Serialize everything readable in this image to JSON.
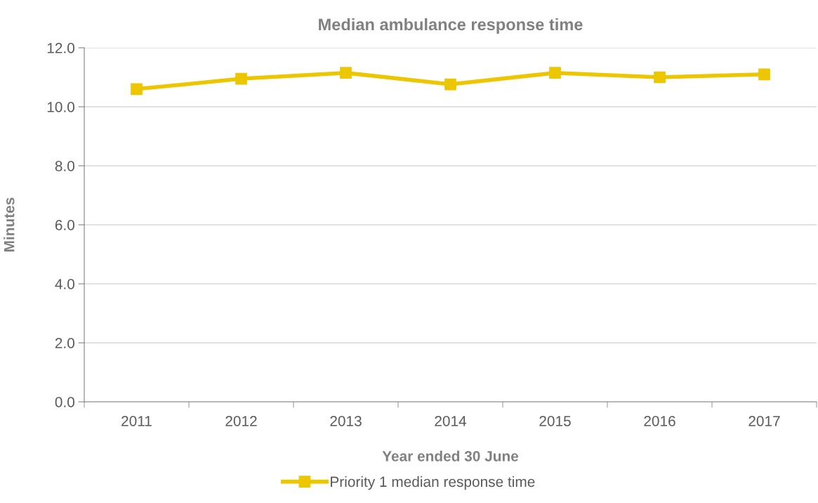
{
  "chart_data": {
    "type": "line",
    "title": "Median ambulance response time",
    "xlabel": "Year ended 30 June",
    "ylabel": "Minutes",
    "categories": [
      "2011",
      "2012",
      "2013",
      "2014",
      "2015",
      "2016",
      "2017"
    ],
    "series": [
      {
        "name": "Priority 1 median response time",
        "color": "#ecc600",
        "values": [
          10.6,
          10.95,
          11.15,
          10.76,
          11.15,
          11.0,
          11.1
        ]
      }
    ],
    "ylim": [
      0,
      12
    ],
    "yticks": [
      {
        "value": 0,
        "label": "0.0"
      },
      {
        "value": 2,
        "label": "2.0"
      },
      {
        "value": 4,
        "label": "4.0"
      },
      {
        "value": 6,
        "label": "6.0"
      },
      {
        "value": 8,
        "label": "8.0"
      },
      {
        "value": 10,
        "label": "10.0"
      },
      {
        "value": 12,
        "label": "12.0"
      }
    ],
    "grid": "y",
    "legend": "bottom",
    "marker": "square",
    "line_style": "solid"
  }
}
